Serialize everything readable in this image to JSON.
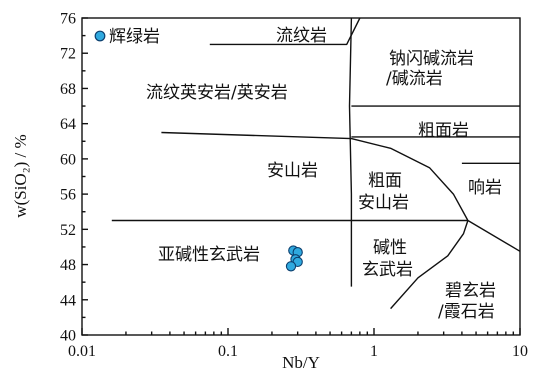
{
  "chart_data": {
    "type": "scatter",
    "title": "",
    "xlabel": "Nb/Y",
    "ylabel": "w(SiO₂) / %",
    "x_scale": "log",
    "xlim": [
      0.01,
      10
    ],
    "ylim": [
      40,
      76
    ],
    "x_ticks": [
      "0.01",
      "0.1",
      "1",
      "10"
    ],
    "y_ticks": [
      "40",
      "44",
      "48",
      "52",
      "56",
      "60",
      "64",
      "68",
      "72",
      "76"
    ],
    "grid": false,
    "legend": {
      "placement": "top-left",
      "entries": [
        {
          "label": "辉绿岩",
          "marker": "circle",
          "color": "#2fa9df"
        }
      ]
    },
    "series": [
      {
        "name": "辉绿岩",
        "color": "#2fa9df",
        "points": [
          {
            "x": 0.28,
            "y": 49.6
          },
          {
            "x": 0.3,
            "y": 49.4
          },
          {
            "x": 0.29,
            "y": 48.6
          },
          {
            "x": 0.3,
            "y": 48.3
          },
          {
            "x": 0.27,
            "y": 47.8
          }
        ]
      }
    ],
    "field_labels": [
      "流纹岩",
      "钠闪碱流岩",
      "/碱流岩",
      "流纹英安岩/英安岩",
      "粗面岩",
      "安山岩",
      "粗面",
      "安山岩",
      "响岩",
      "亚碱性玄武岩",
      "碱性",
      "玄武岩",
      "碧玄岩",
      "/霞石岩"
    ],
    "boundaries": [
      [
        [
          0.075,
          73
        ],
        [
          0.65,
          73
        ],
        [
          0.8,
          76
        ]
      ],
      [
        [
          0.7,
          76
        ],
        [
          0.68,
          66
        ],
        [
          0.7,
          56
        ],
        [
          0.7,
          45.5
        ]
      ],
      [
        [
          0.7,
          66
        ],
        [
          10,
          66
        ]
      ],
      [
        [
          0.7,
          62.5
        ],
        [
          10,
          62.5
        ]
      ],
      [
        [
          4.0,
          59.5
        ],
        [
          10,
          59.5
        ]
      ],
      [
        [
          0.035,
          63
        ],
        [
          0.7,
          62.3
        ],
        [
          1.3,
          61.2
        ],
        [
          2.4,
          59.0
        ],
        [
          3.5,
          56.0
        ],
        [
          4.4,
          53.0
        ],
        [
          10,
          49.5
        ]
      ],
      [
        [
          0.016,
          53
        ],
        [
          4.4,
          53
        ]
      ],
      [
        [
          4.4,
          53
        ],
        [
          4.1,
          51.5
        ],
        [
          3.2,
          49.0
        ],
        [
          2.0,
          46.5
        ],
        [
          1.3,
          43
        ]
      ]
    ]
  },
  "colors": {
    "marker_fill": "#2fa9df",
    "marker_stroke": "#0c3f6e",
    "line": "#111111"
  }
}
